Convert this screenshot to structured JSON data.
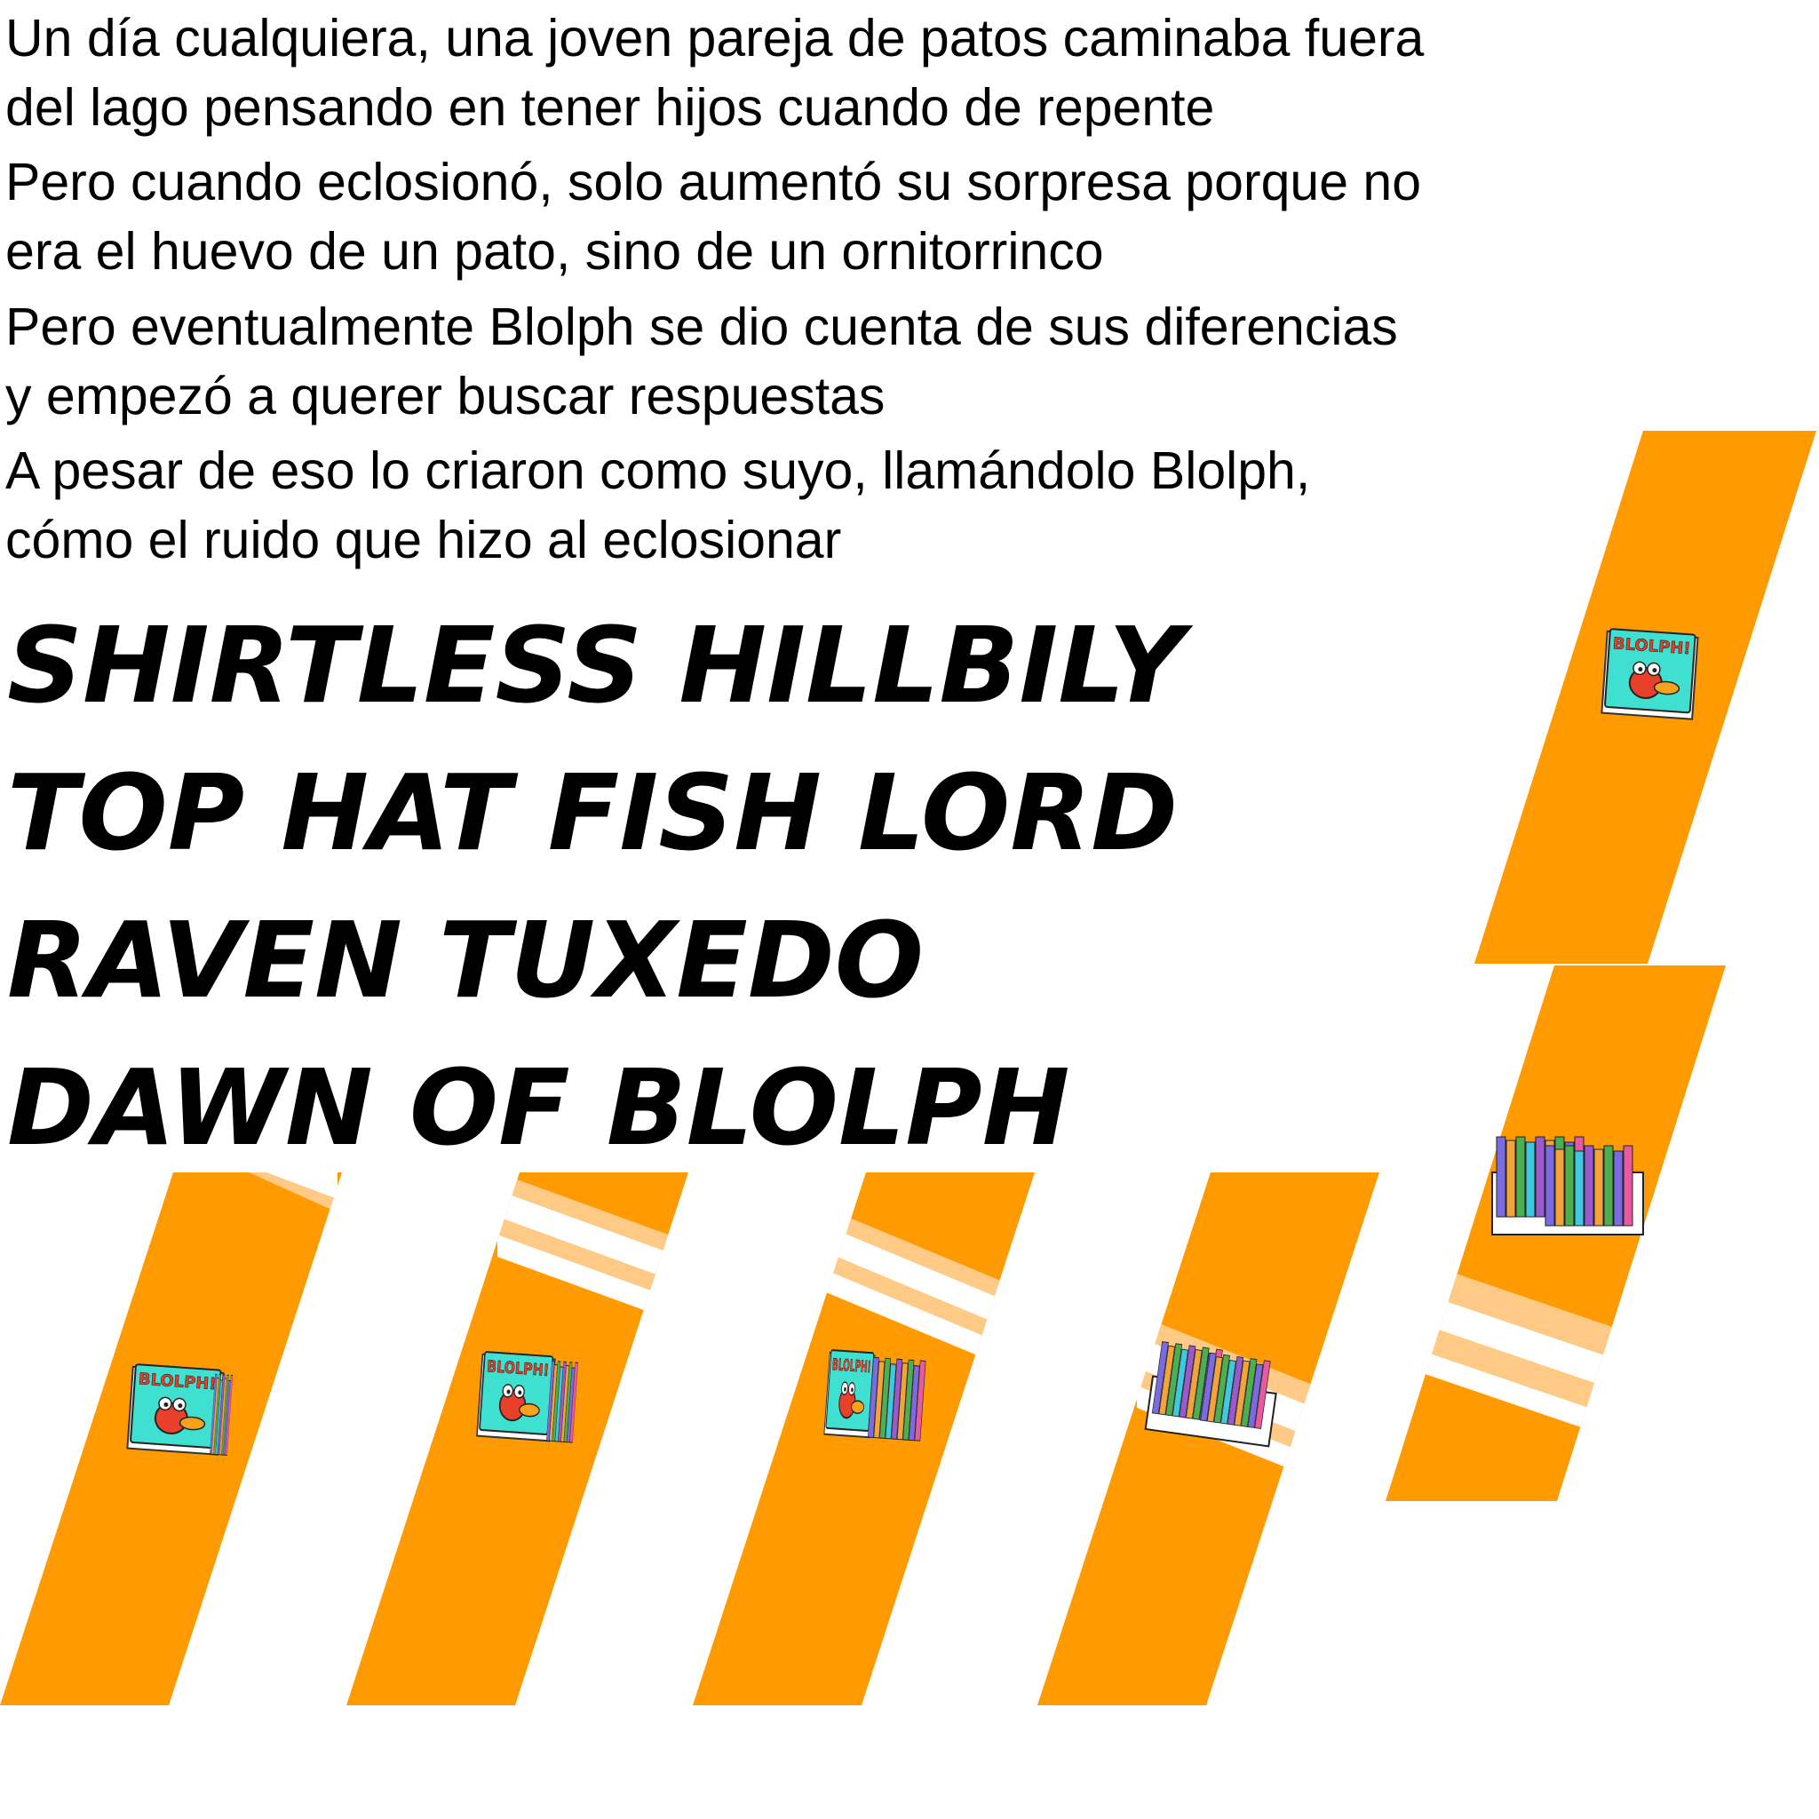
{
  "story": [
    {
      "line1": "Un día cualquiera, una joven pareja de patos caminaba fuera",
      "line2": "del lago pensando en tener hijos cuando de repente"
    },
    {
      "line1": "Pero cuando eclosionó, solo aumentó su sorpresa porque no",
      "line2": "era el huevo de un pato, sino de un ornitorrinco"
    },
    {
      "line1": "Pero eventualmente Blolph se dio cuenta de sus diferencias",
      "line2": "y empezó a querer buscar respuestas"
    },
    {
      "line1": "A pesar de eso lo criaron como suyo, llamándolo Blolph,",
      "line2": "cómo el ruido que hizo al eclosionar"
    }
  ],
  "titles": [
    "SHIRTLESS HILLBILY",
    "TOP HAT FISH LORD",
    "RAVEN TUXEDO",
    "DAWN OF BLOLPH"
  ],
  "book": {
    "cover_text": "BLOLPH!"
  },
  "colors": {
    "panel": "#ff9a00",
    "stripe_light": "#ffc986",
    "stripe_white": "#ffffff",
    "book_cover": "#40e0d0",
    "book_bird": "#e8402a",
    "book_beak": "#f6a21c"
  }
}
